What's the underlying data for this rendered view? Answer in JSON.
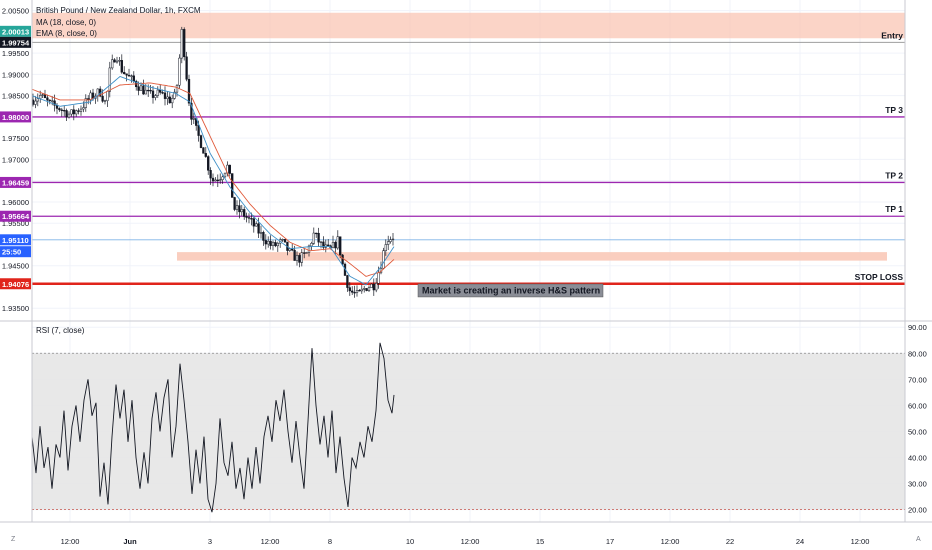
{
  "legend": {
    "symbol": "British Pound / New Zealand Dollar, 1h, FXCM",
    "ma": "MA (18, close, 0)",
    "ema": "EMA (8, close, 0)",
    "rsi": "RSI (7, close)"
  },
  "buttons": {
    "left": "Z",
    "right": "A"
  },
  "colors": {
    "up_candle": "#131722",
    "down_candle": "#131722",
    "ma_line": "#e05a3a",
    "ema_line": "#3d8fc7",
    "level_line": "#9c27b0",
    "stop_line": "#e0241b",
    "zone_fill": "#f9c6b4",
    "rsi_band": "#e6e6e6",
    "current_price": "#2962ff",
    "annotation_bg": "#8a8d96"
  },
  "chart_data": [
    {
      "type": "candlestick",
      "title": "British Pound / New Zealand Dollar, 1h, FXCM",
      "price_axis": {
        "range": [
          1.932,
          2.0075
        ],
        "ticks": [
          1.935,
          1.945,
          1.955,
          1.96,
          1.965,
          1.97,
          1.975,
          1.98,
          1.985,
          1.99,
          1.995,
          2.005
        ],
        "tick_labels": [
          "1.93500",
          "1.94500",
          "1.95500",
          "1.96000",
          "1.96500",
          "1.97000",
          "1.97500",
          "1.98000",
          "1.98500",
          "1.99000",
          "1.99500",
          "2.00500"
        ]
      },
      "x_axis": {
        "range": [
          0,
          930
        ],
        "ticks": [
          {
            "x": 70,
            "label": "12:00"
          },
          {
            "x": 130,
            "label": "Jun"
          },
          {
            "x": 210,
            "label": "3"
          },
          {
            "x": 270,
            "label": "12:00"
          },
          {
            "x": 330,
            "label": "8"
          },
          {
            "x": 410,
            "label": "10"
          },
          {
            "x": 470,
            "label": "12:00"
          },
          {
            "x": 540,
            "label": "15"
          },
          {
            "x": 610,
            "label": "17"
          },
          {
            "x": 670,
            "label": "12:00"
          },
          {
            "x": 730,
            "label": "22"
          },
          {
            "x": 800,
            "label": "24"
          },
          {
            "x": 860,
            "label": "12:00"
          }
        ]
      },
      "price_badges": [
        {
          "price": 2.00013,
          "label": "2.00013",
          "color": "#26a69a"
        },
        {
          "price": 1.99754,
          "label": "1.99754",
          "color": "#131722"
        },
        {
          "price": 1.98,
          "label": "1.98000",
          "color": "#9c27b0"
        },
        {
          "price": 1.96459,
          "label": "1.96459",
          "color": "#9c27b0"
        },
        {
          "price": 1.95664,
          "label": "1.95664",
          "color": "#9c27b0"
        },
        {
          "price": 1.9511,
          "label": "1.95110",
          "color": "#2962ff"
        },
        {
          "price": 1.9483,
          "label": "25:50",
          "color": "#2962ff"
        },
        {
          "price": 1.94076,
          "label": "1.94076",
          "color": "#e0241b"
        }
      ],
      "levels": [
        {
          "price": 1.99754,
          "label": "Entry",
          "color": "#9e9e9e",
          "width": 1
        },
        {
          "price": 1.98,
          "label": "TP 3",
          "color": "#9c27b0",
          "width": 1.3
        },
        {
          "price": 1.96459,
          "label": "TP 2",
          "color": "#9c27b0",
          "width": 1.3
        },
        {
          "price": 1.95664,
          "label": "TP 1",
          "color": "#9c27b0",
          "width": 1.3
        },
        {
          "price": 1.94076,
          "label": "STOP LOSS",
          "color": "#e0241b",
          "width": 2.5
        }
      ],
      "current_price_line": 1.9511,
      "zones": [
        {
          "x_start": 32,
          "x_end": 905,
          "price_top": 2.0045,
          "price_bottom": 1.9985
        },
        {
          "x_start": 177,
          "x_end": 887,
          "price_top": 1.9482,
          "price_bottom": 1.9462
        }
      ],
      "annotation": {
        "text": "Market is creating an inverse H&S pattern",
        "x": 418,
        "price": 1.9393
      },
      "close_anchors": [
        [
          32,
          1.984
        ],
        [
          40,
          1.985
        ],
        [
          50,
          1.983
        ],
        [
          60,
          1.982
        ],
        [
          70,
          1.9805
        ],
        [
          80,
          1.982
        ],
        [
          90,
          1.9845
        ],
        [
          100,
          1.986
        ],
        [
          106,
          1.983
        ],
        [
          110,
          1.991
        ],
        [
          116,
          1.995
        ],
        [
          122,
          1.991
        ],
        [
          130,
          1.989
        ],
        [
          140,
          1.987
        ],
        [
          150,
          1.985
        ],
        [
          160,
          1.9855
        ],
        [
          170,
          1.984
        ],
        [
          176,
          1.985
        ],
        [
          182,
          2.0005
        ],
        [
          186,
          1.991
        ],
        [
          190,
          1.9815
        ],
        [
          196,
          1.977
        ],
        [
          204,
          1.972
        ],
        [
          212,
          1.965
        ],
        [
          220,
          1.966
        ],
        [
          228,
          1.9685
        ],
        [
          234,
          1.9585
        ],
        [
          242,
          1.9575
        ],
        [
          252,
          1.955
        ],
        [
          262,
          1.952
        ],
        [
          272,
          1.9495
        ],
        [
          282,
          1.9505
        ],
        [
          290,
          1.948
        ],
        [
          298,
          1.9465
        ],
        [
          306,
          1.9475
        ],
        [
          314,
          1.9525
        ],
        [
          322,
          1.9495
        ],
        [
          330,
          1.9485
        ],
        [
          338,
          1.951
        ],
        [
          344,
          1.9435
        ],
        [
          350,
          1.939
        ],
        [
          358,
          1.938
        ],
        [
          366,
          1.94
        ],
        [
          374,
          1.9405
        ],
        [
          380,
          1.9445
        ],
        [
          386,
          1.951
        ],
        [
          394,
          1.952
        ]
      ],
      "ma_anchors": [
        [
          32,
          1.9865
        ],
        [
          60,
          1.984
        ],
        [
          90,
          1.984
        ],
        [
          120,
          1.9875
        ],
        [
          150,
          1.988
        ],
        [
          176,
          1.987
        ],
        [
          190,
          1.9855
        ],
        [
          210,
          1.9755
        ],
        [
          230,
          1.9655
        ],
        [
          250,
          1.9595
        ],
        [
          270,
          1.9545
        ],
        [
          290,
          1.9505
        ],
        [
          310,
          1.9485
        ],
        [
          330,
          1.949
        ],
        [
          350,
          1.9455
        ],
        [
          366,
          1.9425
        ],
        [
          380,
          1.9435
        ],
        [
          394,
          1.9465
        ]
      ],
      "ema_anchors": [
        [
          32,
          1.985
        ],
        [
          60,
          1.9825
        ],
        [
          90,
          1.9835
        ],
        [
          120,
          1.9895
        ],
        [
          150,
          1.987
        ],
        [
          176,
          1.9855
        ],
        [
          190,
          1.9835
        ],
        [
          210,
          1.9715
        ],
        [
          230,
          1.9635
        ],
        [
          250,
          1.9575
        ],
        [
          270,
          1.9525
        ],
        [
          290,
          1.949
        ],
        [
          310,
          1.9495
        ],
        [
          330,
          1.9495
        ],
        [
          350,
          1.9425
        ],
        [
          366,
          1.9405
        ],
        [
          380,
          1.9445
        ],
        [
          394,
          1.9495
        ]
      ]
    },
    {
      "type": "line",
      "title": "RSI (7, close)",
      "y_axis": {
        "range": [
          16,
          92
        ],
        "ticks": [
          20,
          30,
          40,
          50,
          60,
          70,
          80,
          90
        ],
        "tick_labels": [
          "20.00",
          "30.00",
          "40.00",
          "50.00",
          "60.00",
          "70.00",
          "80.00",
          "90.00"
        ]
      },
      "band": [
        20,
        80
      ],
      "points": [
        [
          32,
          48
        ],
        [
          36,
          34
        ],
        [
          40,
          52
        ],
        [
          44,
          36
        ],
        [
          48,
          44
        ],
        [
          52,
          28
        ],
        [
          56,
          45
        ],
        [
          60,
          40
        ],
        [
          64,
          58
        ],
        [
          68,
          35
        ],
        [
          72,
          52
        ],
        [
          76,
          60
        ],
        [
          80,
          46
        ],
        [
          84,
          62
        ],
        [
          88,
          70
        ],
        [
          92,
          56
        ],
        [
          96,
          61
        ],
        [
          100,
          25
        ],
        [
          104,
          38
        ],
        [
          108,
          22
        ],
        [
          112,
          48
        ],
        [
          116,
          68
        ],
        [
          120,
          55
        ],
        [
          124,
          66
        ],
        [
          128,
          46
        ],
        [
          132,
          62
        ],
        [
          136,
          40
        ],
        [
          140,
          28
        ],
        [
          144,
          42
        ],
        [
          148,
          30
        ],
        [
          152,
          55
        ],
        [
          156,
          65
        ],
        [
          160,
          50
        ],
        [
          164,
          63
        ],
        [
          168,
          70
        ],
        [
          172,
          40
        ],
        [
          176,
          52
        ],
        [
          180,
          76
        ],
        [
          184,
          62
        ],
        [
          188,
          46
        ],
        [
          192,
          26
        ],
        [
          196,
          43
        ],
        [
          200,
          30
        ],
        [
          204,
          48
        ],
        [
          208,
          24
        ],
        [
          212,
          19
        ],
        [
          216,
          30
        ],
        [
          220,
          55
        ],
        [
          224,
          38
        ],
        [
          228,
          33
        ],
        [
          232,
          46
        ],
        [
          236,
          28
        ],
        [
          240,
          36
        ],
        [
          244,
          24
        ],
        [
          248,
          40
        ],
        [
          252,
          28
        ],
        [
          256,
          44
        ],
        [
          260,
          30
        ],
        [
          264,
          48
        ],
        [
          268,
          56
        ],
        [
          272,
          46
        ],
        [
          276,
          62
        ],
        [
          280,
          54
        ],
        [
          284,
          66
        ],
        [
          288,
          50
        ],
        [
          292,
          38
        ],
        [
          296,
          54
        ],
        [
          300,
          40
        ],
        [
          304,
          28
        ],
        [
          308,
          54
        ],
        [
          312,
          82
        ],
        [
          316,
          60
        ],
        [
          320,
          45
        ],
        [
          324,
          56
        ],
        [
          328,
          40
        ],
        [
          332,
          58
        ],
        [
          336,
          34
        ],
        [
          340,
          48
        ],
        [
          344,
          32
        ],
        [
          348,
          21
        ],
        [
          352,
          40
        ],
        [
          356,
          36
        ],
        [
          360,
          46
        ],
        [
          364,
          40
        ],
        [
          368,
          52
        ],
        [
          372,
          46
        ],
        [
          376,
          58
        ],
        [
          380,
          84
        ],
        [
          384,
          78
        ],
        [
          388,
          62
        ],
        [
          392,
          57
        ],
        [
          394,
          64
        ]
      ]
    }
  ]
}
